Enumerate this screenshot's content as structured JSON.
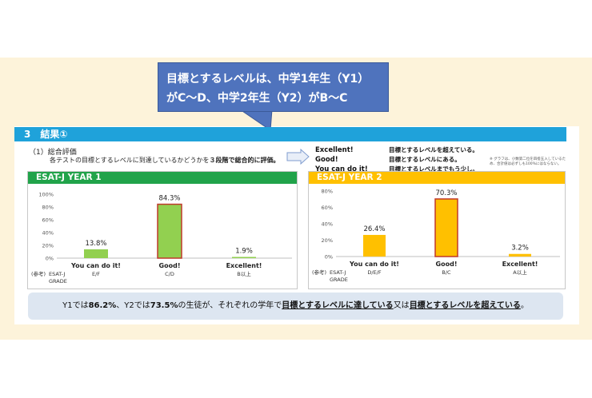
{
  "callout": {
    "line1": "目標とするレベルは、中学1年生（Y1）",
    "line2": "がC〜D、中学2年生（Y2）がB〜C"
  },
  "section": {
    "title": "3　結果①"
  },
  "subheading": {
    "label": "（1）総合評価",
    "desc_prefix": "各テストの目標とするレベルに到達しているかどうかを",
    "desc_bold": "３段階で総合的に評価。"
  },
  "legend": [
    {
      "key": "Excellent!",
      "desc": "目標とするレベルを超えている。"
    },
    {
      "key": "Good!",
      "desc": "目標とするレベルにある。"
    },
    {
      "key": "You can do it!",
      "desc": "目標とするレベルまでもう少し。"
    }
  ],
  "footnote": "※ グラフは、小数第二位を四捨五入しているため、合計値は必ずしも100%にはならない。",
  "grade_label": {
    "ref": "(参考)",
    "esat": "ESAT-J",
    "grade": "GRADE"
  },
  "colors": {
    "header": "#1fa2da",
    "year1": "#21a34a",
    "year2": "#ffc000",
    "bar1": "#92d050",
    "bar2": "#ffc000",
    "highlight_border": "#c0392b",
    "callout": "#4f73bd"
  },
  "chart_data": [
    {
      "type": "bar",
      "title": "ESAT-J YEAR 1",
      "categories": [
        "You can do it!",
        "Good!",
        "Excellent!"
      ],
      "grades": [
        "E/F",
        "C/D",
        "B以上"
      ],
      "values": [
        13.8,
        84.3,
        1.9
      ],
      "value_labels": [
        "13.8%",
        "84.3%",
        "1.9%"
      ],
      "highlight": [
        false,
        true,
        false
      ],
      "ylim": [
        0,
        100
      ],
      "yticks": [
        "0%",
        "20%",
        "40%",
        "60%",
        "80%",
        "100%"
      ],
      "ytick_values": [
        0,
        20,
        40,
        60,
        80,
        100
      ]
    },
    {
      "type": "bar",
      "title": "ESAT-J YEAR 2",
      "categories": [
        "You can do it!",
        "Good!",
        "Excellent!"
      ],
      "grades": [
        "D/E/F",
        "B/C",
        "A以上"
      ],
      "values": [
        26.4,
        70.3,
        3.2
      ],
      "value_labels": [
        "26.4%",
        "70.3%",
        "3.2%"
      ],
      "highlight": [
        false,
        true,
        false
      ],
      "ylim": [
        0,
        80
      ],
      "yticks": [
        "0%",
        "20%",
        "40%",
        "60%",
        "80%"
      ],
      "ytick_values": [
        0,
        20,
        40,
        60,
        80
      ]
    }
  ],
  "summary": {
    "p1": "Y1では",
    "v1": "86.2%",
    "p2": "、Y2では",
    "v2": "73.5%",
    "p3": "の生徒が、それぞれの学年で",
    "u1": "目標とするレベルに達している",
    "p4": "又は",
    "u2": "目標とするレベルを超えている",
    "p5": "。"
  }
}
